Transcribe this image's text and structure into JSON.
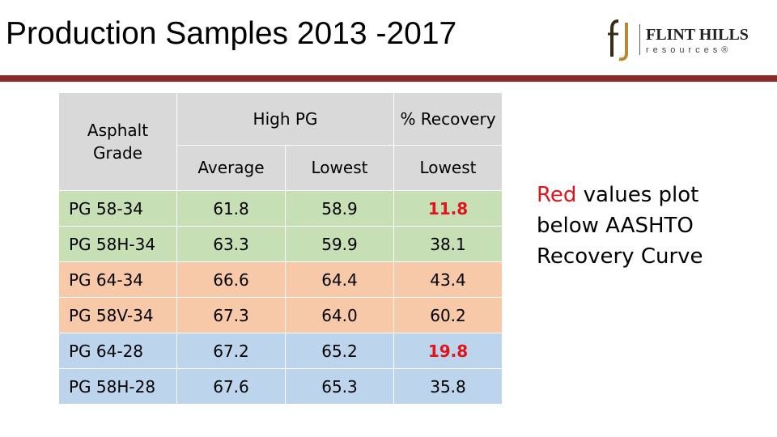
{
  "slide": {
    "title": "Production Samples 2013 -2017",
    "accent_color": "#8b2a26"
  },
  "logo": {
    "brand": "FLINT HILLS",
    "sub": "resources®",
    "mark": "fj"
  },
  "table": {
    "header": {
      "grade": "Asphalt Grade",
      "high_pg": "High PG",
      "recovery": "% Recovery",
      "average": "Average",
      "lowest_pg": "Lowest",
      "lowest_rec": "Lowest"
    },
    "rows": [
      {
        "grade": "PG 58-34",
        "average": "61.8",
        "lowest": "58.9",
        "recovery": "11.8",
        "flag": true,
        "color": "#c6dfb4"
      },
      {
        "grade": "PG 58H-34",
        "average": "63.3",
        "lowest": "59.9",
        "recovery": "38.1",
        "flag": false,
        "color": "#c6dfb4"
      },
      {
        "grade": "PG 64-34",
        "average": "66.6",
        "lowest": "64.4",
        "recovery": "43.4",
        "flag": false,
        "color": "#f7c9a8"
      },
      {
        "grade": "PG 58V-34",
        "average": "67.3",
        "lowest": "64.0",
        "recovery": "60.2",
        "flag": false,
        "color": "#f7c9a8"
      },
      {
        "grade": "PG 64-28",
        "average": "67.2",
        "lowest": "65.2",
        "recovery": "19.8",
        "flag": true,
        "color": "#bcd4ec"
      },
      {
        "grade": "PG 58H-28",
        "average": "67.6",
        "lowest": "65.3",
        "recovery": "35.8",
        "flag": false,
        "color": "#bcd4ec"
      }
    ]
  },
  "note": {
    "red_word": "Red",
    "rest": "values plot below AASHTO Recovery Curve",
    "red_color": "#e0151c"
  }
}
